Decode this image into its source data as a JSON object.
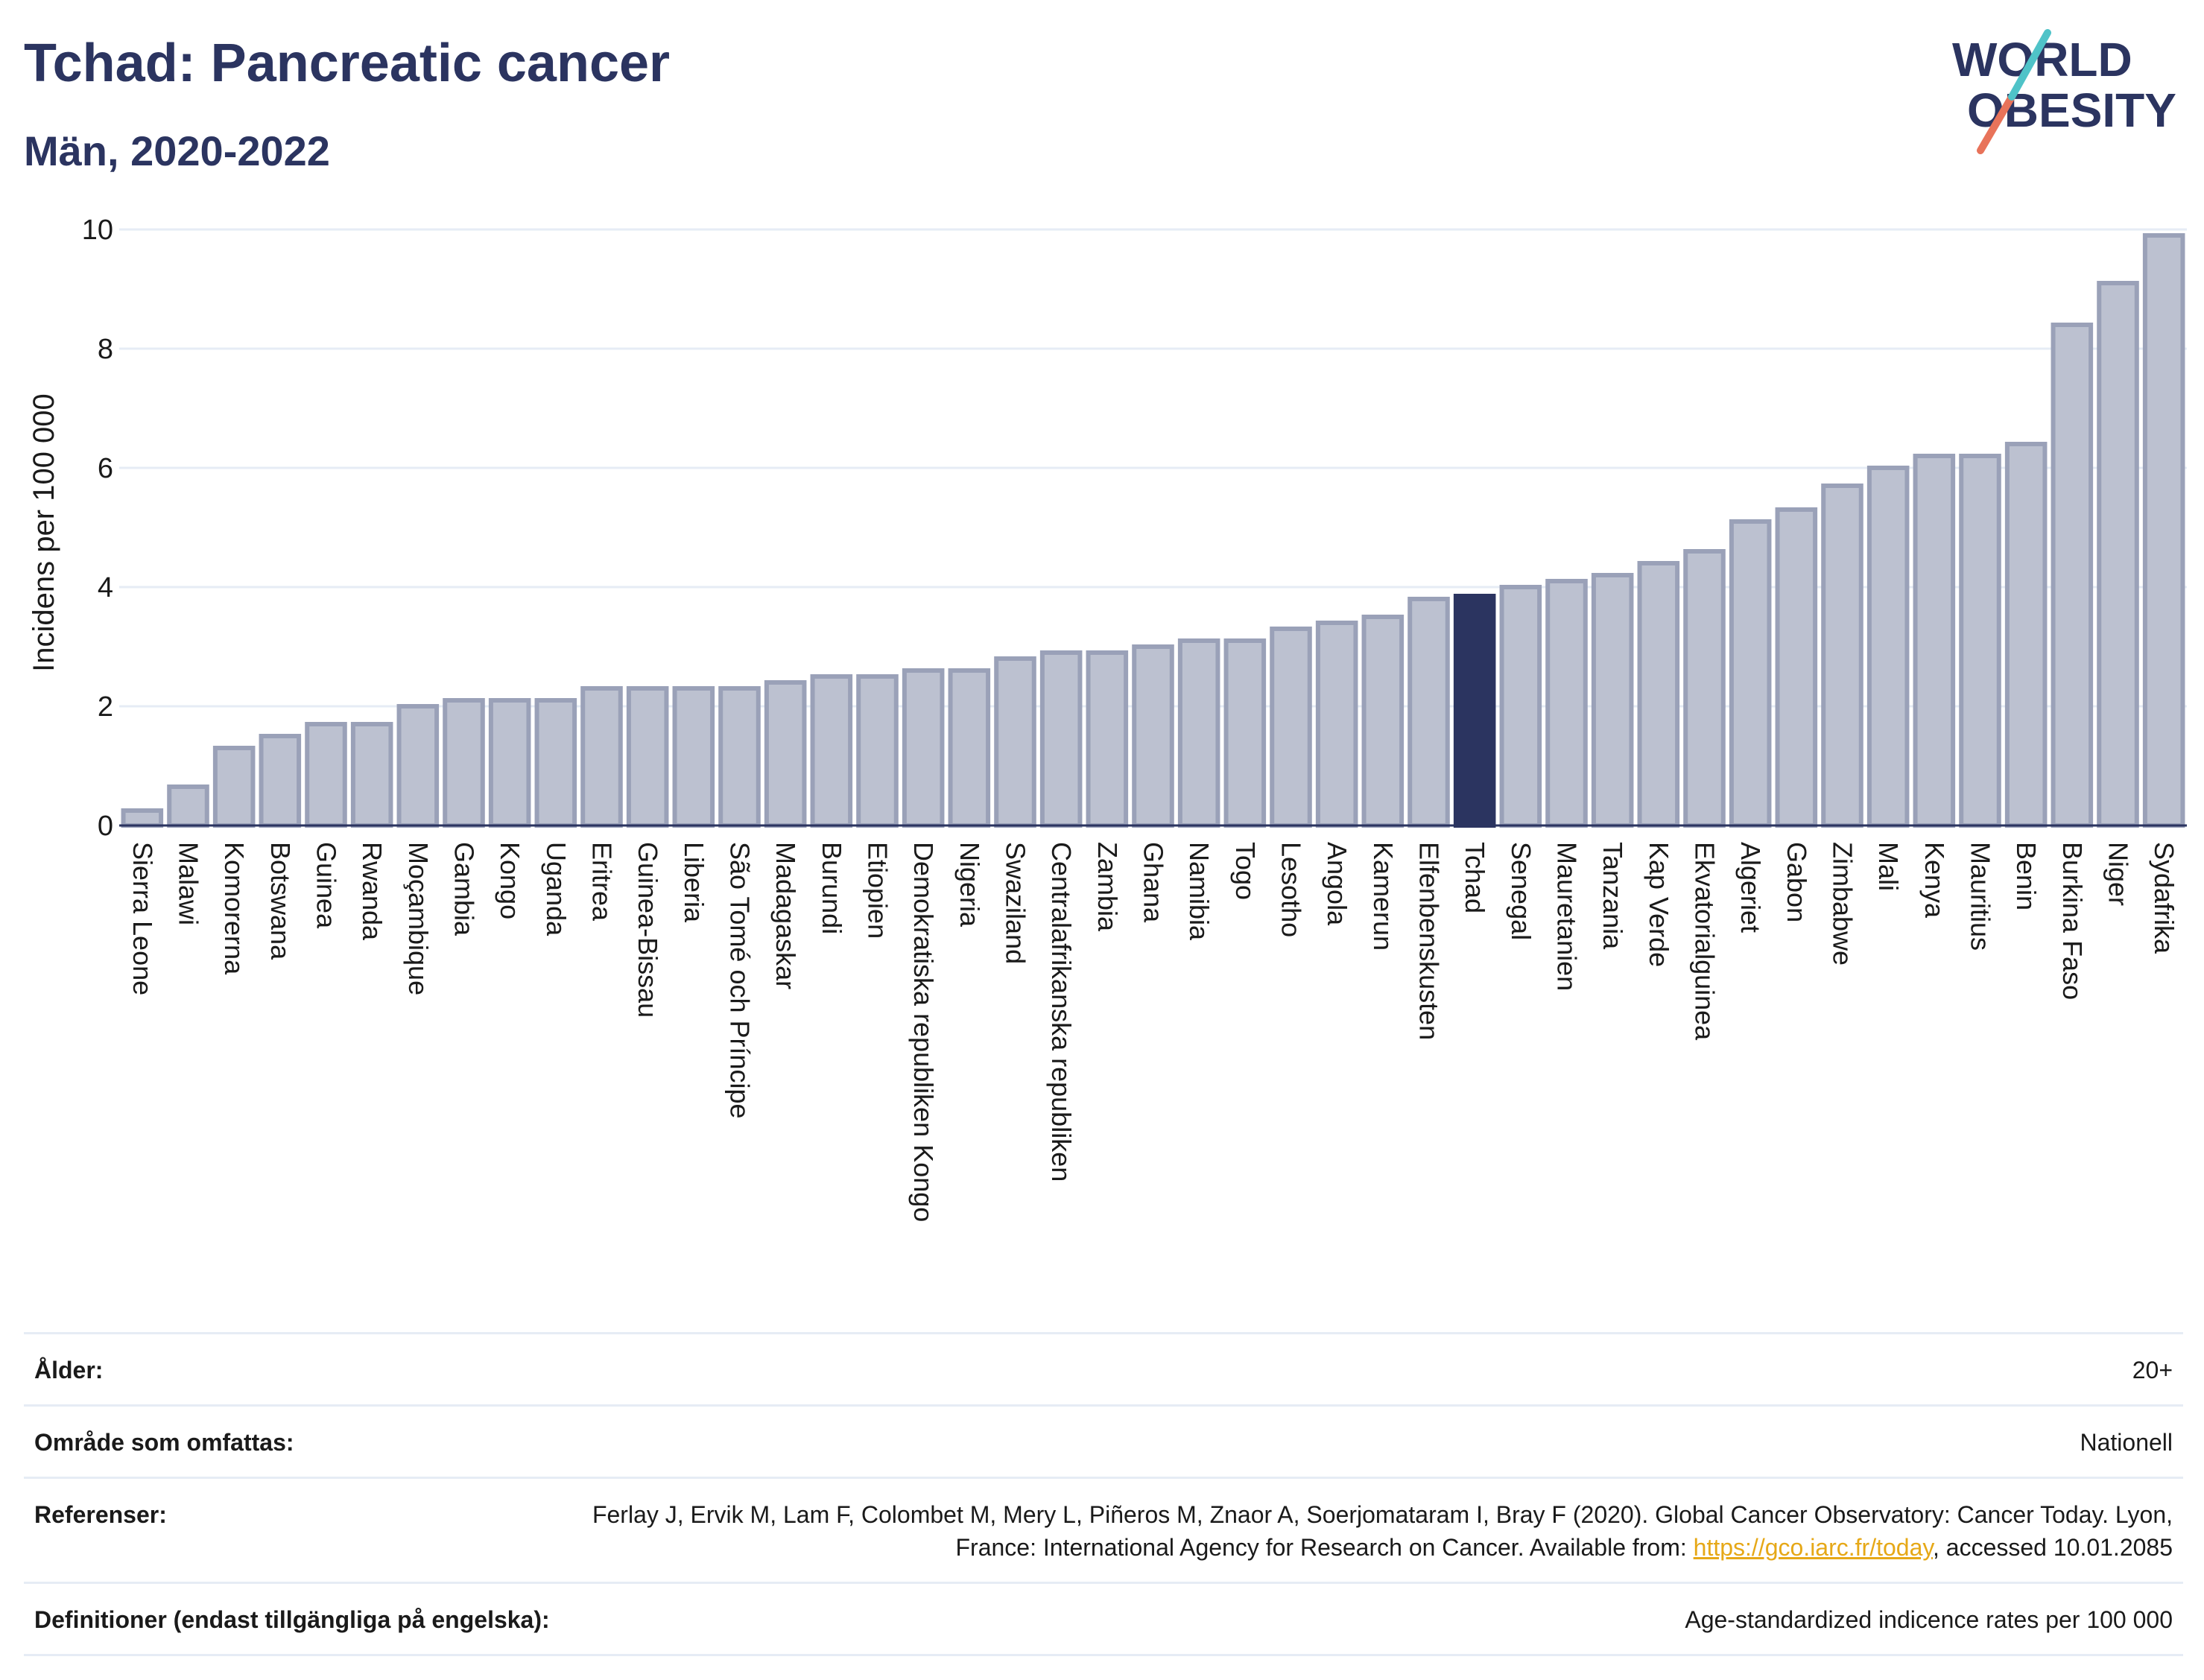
{
  "header": {
    "title": "Tchad: Pancreatic cancer",
    "subtitle": "Män, 2020-2022"
  },
  "logo": {
    "line1": "WORLD",
    "line2": "OBESITY",
    "accent_colors": [
      "#4fc3c8",
      "#e8735a"
    ]
  },
  "chart_data": {
    "type": "bar",
    "ylabel": "Incidens per 100 000",
    "xlabel": "",
    "ylim": [
      0,
      10
    ],
    "yticks": [
      0,
      2,
      4,
      6,
      8,
      10
    ],
    "grid": true,
    "highlight": "Tchad",
    "colors": {
      "bar": "#bcc1d0",
      "bar_border": "#9aa1b8",
      "highlight": "#2b3460"
    },
    "categories": [
      "Sierra Leone",
      "Malawi",
      "Komorerna",
      "Botswana",
      "Guinea",
      "Rwanda",
      "Moçambique",
      "Gambia",
      "Kongo",
      "Uganda",
      "Eritrea",
      "Guinea-Bissau",
      "Liberia",
      "São Tomé och Príncipe",
      "Madagaskar",
      "Burundi",
      "Etiopien",
      "Demokratiska republiken Kongo",
      "Nigeria",
      "Swaziland",
      "Centralafrikanska republiken",
      "Zambia",
      "Ghana",
      "Namibia",
      "Togo",
      "Lesotho",
      "Angola",
      "Kamerun",
      "Elfenbenskusten",
      "Tchad",
      "Senegal",
      "Mauretanien",
      "Tanzania",
      "Kap Verde",
      "Ekvatorialguinea",
      "Algeriet",
      "Gabon",
      "Zimbabwe",
      "Mali",
      "Kenya",
      "Mauritius",
      "Benin",
      "Burkina Faso",
      "Niger",
      "Sydafrika"
    ],
    "values": [
      0.25,
      0.65,
      1.3,
      1.5,
      1.7,
      1.7,
      2.0,
      2.1,
      2.1,
      2.1,
      2.3,
      2.3,
      2.3,
      2.3,
      2.4,
      2.5,
      2.5,
      2.6,
      2.6,
      2.8,
      2.9,
      2.9,
      3.0,
      3.1,
      3.1,
      3.3,
      3.4,
      3.5,
      3.8,
      3.85,
      4.0,
      4.1,
      4.2,
      4.4,
      4.6,
      5.1,
      5.3,
      5.7,
      6.0,
      6.2,
      6.2,
      6.4,
      8.4,
      9.1,
      9.9
    ]
  },
  "meta": {
    "age_label": "Ålder:",
    "age_value": "20+",
    "area_label": "Område som omfattas:",
    "area_value": "Nationell",
    "refs_label": "Referenser:",
    "refs_text_1": "Ferlay J, Ervik M, Lam F, Colombet M, Mery L, Piñeros M, Znaor A, Soerjomataram I, Bray F (2020). Global Cancer Observatory: Cancer Today. Lyon, France: International Agency for Research on Cancer. Available from: ",
    "refs_link": "https://gco.iarc.fr/today",
    "refs_text_2": ", accessed 10.01.2085",
    "defs_label": "Definitioner (endast tillgängliga på engelska):",
    "defs_value": "Age-standardized indicence rates per 100 000"
  }
}
